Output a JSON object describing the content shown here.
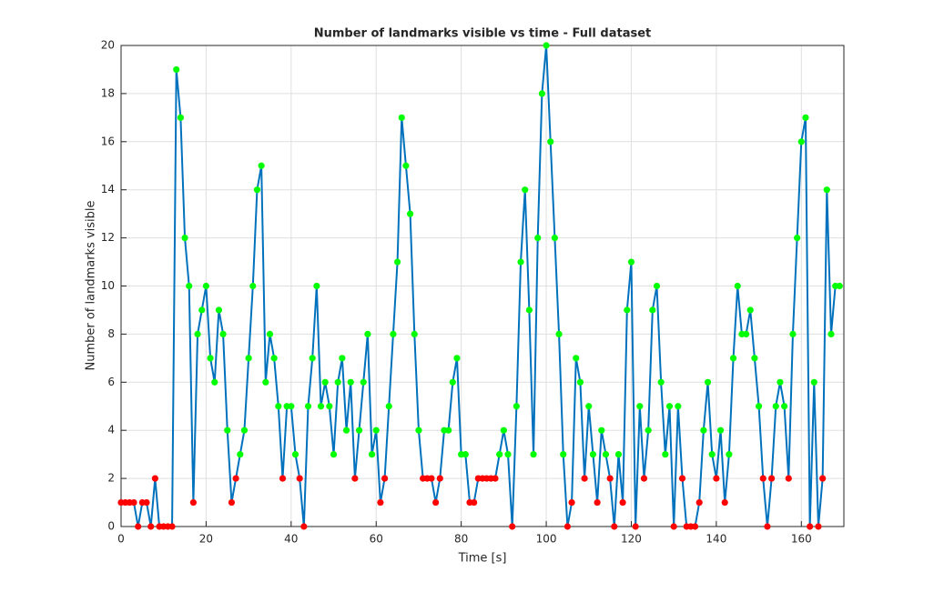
{
  "chart_data": {
    "type": "line",
    "title": "Number of landmarks visible vs time - Full dataset",
    "xlabel": "Time [s]",
    "ylabel": "Number of landmarks visible",
    "xlim": [
      0,
      170
    ],
    "xticks": [
      0,
      20,
      40,
      60,
      80,
      100,
      120,
      140,
      160
    ],
    "ylim": [
      0,
      20
    ],
    "yticks": [
      0,
      2,
      4,
      6,
      8,
      10,
      12,
      14,
      16,
      18,
      20
    ],
    "grid": true,
    "series": [
      {
        "color": "#0072bd",
        "x": [
          0,
          1,
          2,
          3,
          4,
          5,
          6,
          7,
          8,
          9,
          10,
          11,
          12,
          13,
          14,
          15,
          16,
          17,
          18,
          19,
          20,
          21,
          22,
          23,
          24,
          25,
          26,
          27,
          28,
          29,
          30,
          31,
          32,
          33,
          34,
          35,
          36,
          37,
          38,
          39,
          40,
          41,
          42,
          43,
          44,
          45,
          46,
          47,
          48,
          49,
          50,
          51,
          52,
          53,
          54,
          55,
          56,
          57,
          58,
          59,
          60,
          61,
          62,
          63,
          64,
          65,
          66,
          67,
          68,
          69,
          70,
          71,
          72,
          73,
          74,
          75,
          76,
          77,
          78,
          79,
          80,
          81,
          82,
          83,
          84,
          85,
          86,
          87,
          88,
          89,
          90,
          91,
          92,
          93,
          94,
          95,
          96,
          97,
          98,
          99,
          100,
          101,
          102,
          103,
          104,
          105,
          106,
          107,
          108,
          109,
          110,
          111,
          112,
          113,
          114,
          115,
          116,
          117,
          118,
          119,
          120,
          121,
          122,
          123,
          124,
          125,
          126,
          127,
          128,
          129,
          130,
          131,
          132,
          133,
          134,
          135,
          136,
          137,
          138,
          139,
          140,
          141,
          142,
          143,
          144,
          145,
          146,
          147,
          148,
          149,
          150,
          151,
          152,
          153,
          154,
          155,
          156,
          157,
          158,
          159,
          160,
          161,
          162,
          163,
          164,
          165,
          166,
          167,
          168,
          169
        ],
        "values": [
          1,
          1,
          1,
          1,
          0,
          1,
          1,
          0,
          2,
          0,
          0,
          0,
          0,
          19,
          17,
          12,
          10,
          1,
          8,
          9,
          10,
          7,
          6,
          9,
          8,
          4,
          1,
          2,
          3,
          4,
          7,
          10,
          14,
          15,
          6,
          8,
          7,
          5,
          2,
          5,
          5,
          3,
          2,
          0,
          5,
          7,
          10,
          5,
          6,
          5,
          3,
          6,
          7,
          4,
          6,
          2,
          4,
          6,
          8,
          3,
          4,
          1,
          2,
          5,
          8,
          11,
          17,
          15,
          13,
          8,
          4,
          2,
          2,
          2,
          1,
          2,
          4,
          4,
          6,
          7,
          3,
          3,
          1,
          1,
          2,
          2,
          2,
          2,
          2,
          3,
          4,
          3,
          0,
          5,
          11,
          14,
          9,
          3,
          12,
          18,
          20,
          16,
          12,
          8,
          3,
          0,
          1,
          7,
          6,
          2,
          5,
          3,
          1,
          4,
          3,
          2,
          0,
          3,
          1,
          9,
          11,
          0,
          5,
          2,
          4,
          9,
          10,
          6,
          3,
          5,
          0,
          5,
          2,
          0,
          0,
          0,
          1,
          4,
          6,
          3,
          2,
          4,
          1,
          3,
          7,
          10,
          8,
          8,
          9,
          7,
          5,
          2,
          0,
          2,
          5,
          6,
          5,
          2,
          8,
          12,
          16,
          17,
          0,
          6,
          0,
          2,
          14,
          8,
          10,
          10
        ],
        "marker_colors": [
          "red",
          "red",
          "red",
          "red",
          "red",
          "red",
          "red",
          "red",
          "red",
          "red",
          "red",
          "red",
          "red",
          "lime",
          "lime",
          "lime",
          "lime",
          "red",
          "lime",
          "lime",
          "lime",
          "lime",
          "lime",
          "lime",
          "lime",
          "lime",
          "red",
          "red",
          "lime",
          "lime",
          "lime",
          "lime",
          "lime",
          "lime",
          "lime",
          "lime",
          "lime",
          "lime",
          "red",
          "lime",
          "lime",
          "lime",
          "red",
          "red",
          "lime",
          "lime",
          "lime",
          "lime",
          "lime",
          "lime",
          "lime",
          "lime",
          "lime",
          "lime",
          "lime",
          "red",
          "lime",
          "lime",
          "lime",
          "lime",
          "lime",
          "red",
          "red",
          "lime",
          "lime",
          "lime",
          "lime",
          "lime",
          "lime",
          "lime",
          "lime",
          "red",
          "red",
          "red",
          "red",
          "red",
          "lime",
          "lime",
          "lime",
          "lime",
          "lime",
          "lime",
          "red",
          "red",
          "red",
          "red",
          "red",
          "red",
          "red",
          "lime",
          "lime",
          "lime",
          "red",
          "lime",
          "lime",
          "lime",
          "lime",
          "lime",
          "lime",
          "lime",
          "lime",
          "lime",
          "lime",
          "lime",
          "lime",
          "red",
          "red",
          "lime",
          "lime",
          "red",
          "lime",
          "lime",
          "red",
          "lime",
          "lime",
          "red",
          "red",
          "lime",
          "red",
          "lime",
          "lime",
          "red",
          "lime",
          "red",
          "lime",
          "lime",
          "lime",
          "lime",
          "lime",
          "lime",
          "red",
          "lime",
          "red",
          "red",
          "red",
          "red",
          "red",
          "lime",
          "lime",
          "lime",
          "red",
          "lime",
          "red",
          "lime",
          "lime",
          "lime",
          "lime",
          "lime",
          "lime",
          "lime",
          "lime",
          "red",
          "red",
          "red",
          "lime",
          "lime",
          "lime",
          "red",
          "lime",
          "lime",
          "lime",
          "lime",
          "red",
          "lime",
          "red",
          "red",
          "lime",
          "lime",
          "lime",
          "lime"
        ]
      }
    ]
  }
}
